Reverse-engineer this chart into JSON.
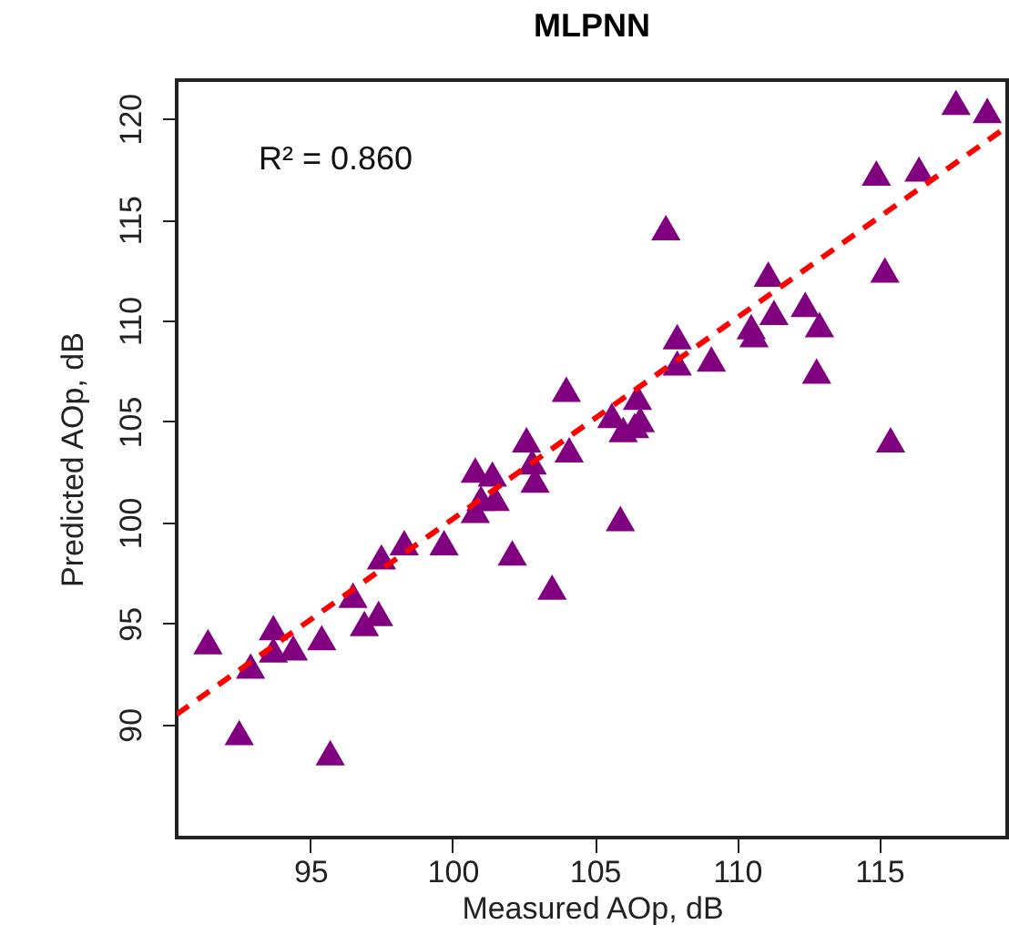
{
  "chart_data": {
    "type": "scatter",
    "title": "MLPNN",
    "xlabel": "Measured AOp, dB",
    "ylabel": "Predicted AOp, dB",
    "annotations": [
      "R² = 0.860"
    ],
    "xlim": [
      90.3,
      119.5
    ],
    "xticks": [
      95,
      100,
      105,
      110,
      115
    ],
    "ylim": [
      84.4,
      121.9
    ],
    "yticks": [
      90,
      95,
      100,
      105,
      110,
      115,
      120
    ],
    "grid": false,
    "series": [
      {
        "color": "#800080",
        "marker": "triangle",
        "x": [
          91.4,
          92.5,
          92.9,
          93.7,
          93.7,
          94.4,
          95.4,
          95.7,
          96.5,
          96.9,
          97.4,
          97.5,
          98.3,
          99.7,
          100.8,
          101.0,
          101.5,
          102.1,
          102.9,
          103.5,
          104.0,
          102.6,
          102.8,
          104.1,
          100.8,
          101.4,
          117.7,
          118.8,
          114.9,
          116.4,
          107.5,
          115.2,
          111.1,
          112.4,
          111.3,
          112.9,
          110.5,
          110.6,
          107.9,
          109.1,
          107.9,
          112.8,
          106.5,
          105.6,
          106.6,
          106.0,
          106.4,
          115.4,
          105.9
        ],
        "values": [
          94.1,
          89.6,
          92.9,
          94.8,
          93.7,
          93.8,
          94.3,
          88.6,
          96.4,
          95.0,
          95.5,
          98.3,
          99.0,
          99.0,
          100.6,
          101.2,
          101.2,
          98.5,
          102.1,
          96.8,
          106.6,
          104.1,
          103.0,
          103.6,
          102.6,
          102.4,
          120.8,
          120.4,
          117.3,
          117.5,
          114.6,
          112.5,
          112.3,
          110.8,
          110.4,
          109.8,
          109.7,
          109.3,
          109.2,
          108.1,
          107.9,
          107.5,
          106.2,
          105.3,
          105.1,
          104.6,
          104.8,
          104.1,
          100.2
        ]
      },
      {
        "type": "line",
        "color": "#ff0000",
        "line_style": "dashed",
        "x": [
          90.3,
          119.5
        ],
        "values": [
          90.5,
          119.6
        ]
      }
    ]
  }
}
